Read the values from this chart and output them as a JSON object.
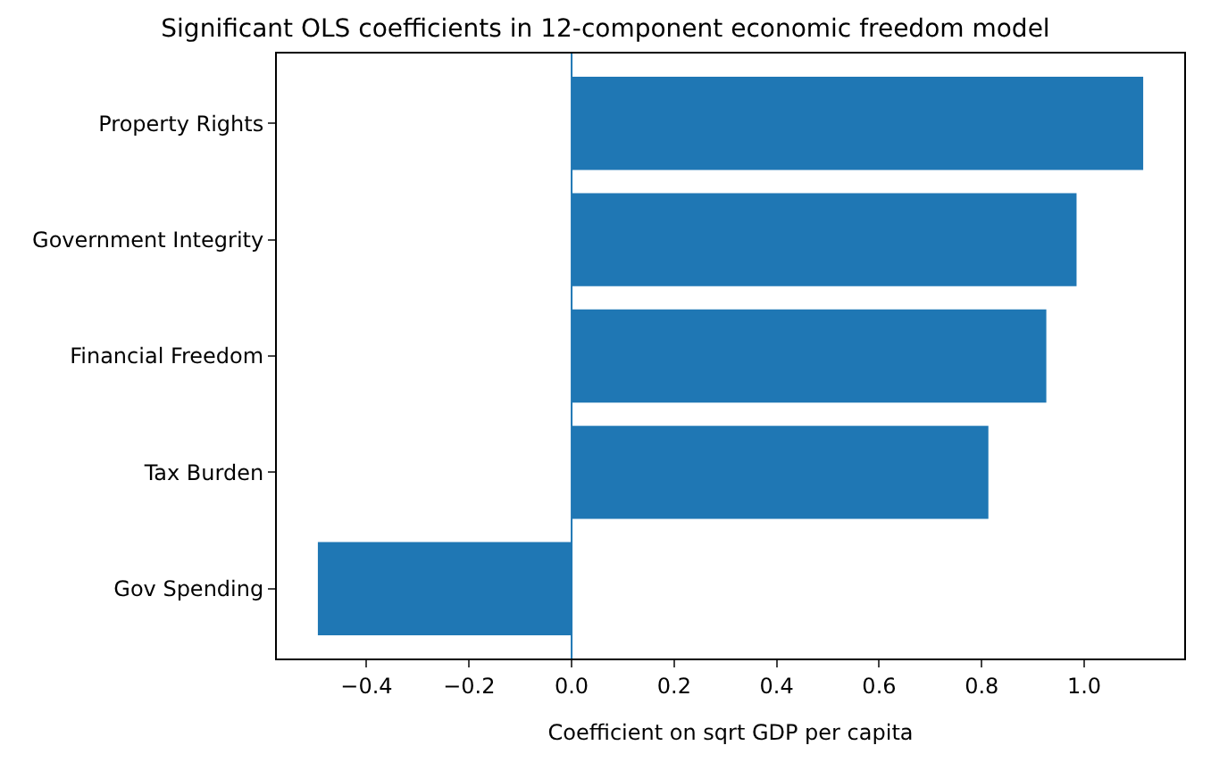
{
  "chart_data": {
    "type": "bar",
    "orientation": "horizontal",
    "title": "Significant OLS coefficients in 12-component economic freedom model",
    "xlabel": "Coefficient on sqrt GDP per capita",
    "categories": [
      "Property Rights",
      "Government Integrity",
      "Financial Freedom",
      "Tax Burden",
      "Gov Spending"
    ],
    "values": [
      1.115,
      0.985,
      0.926,
      0.813,
      -0.495
    ],
    "color": "#1f77b4",
    "xlim": [
      -0.575,
      1.195
    ],
    "xticks": [
      {
        "value": -0.4,
        "label": "−0.4"
      },
      {
        "value": -0.2,
        "label": "−0.2"
      },
      {
        "value": 0,
        "label": "0.0"
      },
      {
        "value": 0.2,
        "label": "0.2"
      },
      {
        "value": 0.4,
        "label": "0.4"
      },
      {
        "value": 0.6,
        "label": "0.6"
      },
      {
        "value": 0.8,
        "label": "0.8"
      },
      {
        "value": 1.0,
        "label": "1.0"
      }
    ],
    "ref_lines": [
      {
        "axis": "x",
        "value": 0,
        "color": "#1f77b4"
      }
    ]
  }
}
